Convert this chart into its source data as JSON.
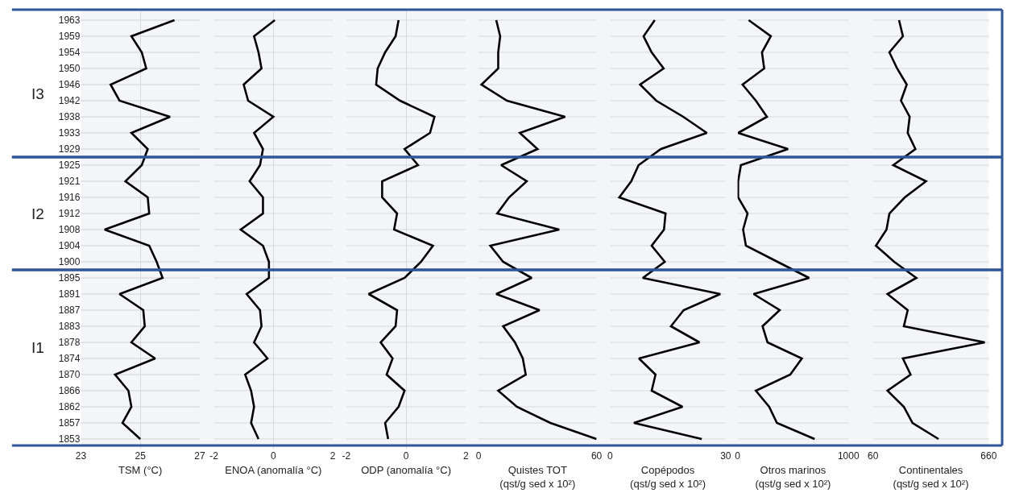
{
  "chart_data": [
    {
      "type": "line",
      "orientation": "horizontal",
      "categories": [
        "1963",
        "1959",
        "1954",
        "1950",
        "1946",
        "1942",
        "1938",
        "1933",
        "1929",
        "1925",
        "1921",
        "1916",
        "1912",
        "1908",
        "1904",
        "1900",
        "1895",
        "1891",
        "1887",
        "1883",
        "1878",
        "1874",
        "1870",
        "1866",
        "1862",
        "1857",
        "1853"
      ],
      "series": [
        {
          "color": "#000000",
          "values": [
            26.15,
            24.7,
            25.05,
            25.2,
            24.0,
            24.3,
            26.0,
            24.7,
            25.25,
            25.05,
            24.5,
            25.25,
            25.3,
            23.8,
            25.3,
            25.55,
            25.75,
            24.3,
            25.1,
            25.15,
            24.7,
            25.5,
            24.15,
            24.6,
            24.7,
            24.4,
            25.0
          ]
        }
      ],
      "xlim": [
        23,
        27
      ],
      "xticks": [
        23,
        25,
        27
      ],
      "xlabel": "TSM (°C)",
      "grid": true,
      "line_style": "solid",
      "bands": [
        {
          "axis": "y",
          "from": "1963",
          "to": "1929",
          "label": "I3",
          "color": "#2f5597"
        },
        {
          "axis": "y",
          "from": "1925",
          "to": "1900",
          "label": "I2",
          "color": "#2f5597"
        },
        {
          "axis": "y",
          "from": "1895",
          "to": "1853",
          "label": "I1",
          "color": "#2f5597"
        }
      ]
    },
    {
      "type": "line",
      "orientation": "horizontal",
      "categories": [
        "1963",
        "1959",
        "1954",
        "1950",
        "1946",
        "1942",
        "1938",
        "1933",
        "1929",
        "1925",
        "1921",
        "1916",
        "1912",
        "1908",
        "1904",
        "1900",
        "1895",
        "1891",
        "1887",
        "1883",
        "1878",
        "1874",
        "1870",
        "1866",
        "1862",
        "1857",
        "1853"
      ],
      "series": [
        {
          "color": "#000000",
          "values": [
            0.05,
            -0.65,
            -0.5,
            -0.4,
            -1.0,
            -0.85,
            0,
            -0.65,
            -0.35,
            -0.45,
            -0.8,
            -0.35,
            -0.35,
            -1.1,
            -0.35,
            -0.15,
            -0.15,
            -0.9,
            -0.45,
            -0.4,
            -0.65,
            -0.2,
            -0.95,
            -0.75,
            -0.65,
            -0.75,
            -0.5
          ]
        }
      ],
      "xlim": [
        -2,
        2
      ],
      "xticks": [
        -2,
        0,
        2
      ],
      "xlabel": "ENOA (anomalía °C)",
      "grid": true,
      "line_style": "solid",
      "tick_labels": "x"
    },
    {
      "type": "line",
      "orientation": "horizontal",
      "categories": [
        "1963",
        "1959",
        "1954",
        "1950",
        "1946",
        "1942",
        "1938",
        "1933",
        "1929",
        "1925",
        "1921",
        "1916",
        "1912",
        "1908",
        "1904",
        "1900",
        "1895",
        "1891",
        "1887",
        "1883",
        "1878",
        "1874",
        "1870",
        "1866",
        "1862",
        "1857",
        "1853"
      ],
      "series": [
        {
          "color": "#000000",
          "values": [
            -0.25,
            -0.35,
            -0.7,
            -0.95,
            -1.0,
            -0.2,
            0.95,
            0.8,
            -0.05,
            0.4,
            -0.8,
            -0.8,
            -0.3,
            -0.4,
            0.9,
            0.5,
            -0.05,
            -1.25,
            -0.3,
            -0.35,
            -0.85,
            -0.45,
            -0.65,
            -0.05,
            -0.25,
            -0.7,
            -0.6
          ]
        }
      ],
      "xlim": [
        -2,
        2
      ],
      "xticks": [
        -2,
        0,
        2
      ],
      "xlabel": "ODP (anomalía °C)",
      "grid": true,
      "line_style": "solid",
      "tick_labels": "x"
    },
    {
      "type": "line",
      "orientation": "horizontal",
      "categories": [
        "1963",
        "1959",
        "1954",
        "1950",
        "1946",
        "1942",
        "1938",
        "1933",
        "1929",
        "1925",
        "1921",
        "1916",
        "1912",
        "1908",
        "1904",
        "1900",
        "1895",
        "1891",
        "1887",
        "1883",
        "1878",
        "1874",
        "1870",
        "1866",
        "1862",
        "1857",
        "1853"
      ],
      "series": [
        {
          "color": "#000000",
          "values": [
            9,
            11,
            10,
            10,
            1.5,
            14.5,
            44,
            21,
            30,
            11.5,
            24.5,
            15.5,
            9.5,
            41,
            6,
            12.5,
            27,
            9,
            31,
            12.5,
            18.5,
            22.5,
            24,
            10,
            19.5,
            36.5,
            60
          ]
        }
      ],
      "xlim": [
        0,
        60
      ],
      "xticks": [
        0,
        60
      ],
      "xlabel": "Quistes TOT\n(qst/g sed x 10²)",
      "grid": true,
      "line_style": "solid",
      "tick_labels": "x"
    },
    {
      "type": "line",
      "orientation": "horizontal",
      "categories": [
        "1963",
        "1959",
        "1954",
        "1950",
        "1946",
        "1942",
        "1938",
        "1933",
        "1929",
        "1925",
        "1921",
        "1916",
        "1912",
        "1908",
        "1904",
        "1900",
        "1895",
        "1891",
        "1887",
        "1883",
        "1878",
        "1874",
        "1870",
        "1866",
        "1862",
        "1857",
        "1853"
      ],
      "series": [
        {
          "color": "#000000",
          "values": [
            11.6,
            8.7,
            10.8,
            13.9,
            7.8,
            12.0,
            19.0,
            25.1,
            13.2,
            7.4,
            5.5,
            2.4,
            14.4,
            14.0,
            10.8,
            14.2,
            8.5,
            28.6,
            19.1,
            15.8,
            23.2,
            7.5,
            11.8,
            10.8,
            18.8,
            6.2,
            23.8
          ]
        }
      ],
      "xlim": [
        0,
        30
      ],
      "xticks": [
        0,
        30
      ],
      "xlabel": "Copépodos\n(qst/g sed x 10²)",
      "grid": true,
      "line_style": "solid",
      "tick_labels": "x"
    },
    {
      "type": "line",
      "orientation": "horizontal",
      "categories": [
        "1963",
        "1959",
        "1954",
        "1950",
        "1946",
        "1942",
        "1938",
        "1933",
        "1929",
        "1925",
        "1921",
        "1916",
        "1912",
        "1908",
        "1904",
        "1900",
        "1895",
        "1891",
        "1887",
        "1883",
        "1878",
        "1874",
        "1870",
        "1866",
        "1862",
        "1857",
        "1853"
      ],
      "series": [
        {
          "color": "#000000",
          "values": [
            100,
            300,
            220,
            240,
            45,
            165,
            265,
            5,
            455,
            30,
            5,
            5,
            90,
            50,
            75,
            360,
            645,
            145,
            380,
            225,
            270,
            580,
            475,
            165,
            285,
            355,
            695
          ]
        }
      ],
      "xlim": [
        0,
        1000
      ],
      "xticks": [
        0,
        1000
      ],
      "xlabel": "Otros marinos\n(qst/g sed x 10²)",
      "grid": true,
      "line_style": "solid",
      "tick_labels": "x"
    },
    {
      "type": "line",
      "orientation": "horizontal",
      "categories": [
        "1963",
        "1959",
        "1954",
        "1950",
        "1946",
        "1942",
        "1938",
        "1933",
        "1929",
        "1925",
        "1921",
        "1916",
        "1912",
        "1908",
        "1904",
        "1900",
        "1895",
        "1891",
        "1887",
        "1883",
        "1878",
        "1874",
        "1870",
        "1866",
        "1862",
        "1857",
        "1853"
      ],
      "series": [
        {
          "color": "#000000",
          "values": [
            195,
            215,
            145,
            185,
            235,
            205,
            250,
            240,
            280,
            165,
            335,
            225,
            145,
            130,
            75,
            170,
            285,
            135,
            240,
            220,
            640,
            215,
            255,
            135,
            220,
            265,
            400
          ]
        }
      ],
      "xlim": [
        60,
        660
      ],
      "xticks": [
        60,
        660
      ],
      "xlabel": "Continentales\n(qst/g sed x 10²)",
      "grid": true,
      "line_style": "solid",
      "tick_labels": "x"
    }
  ]
}
